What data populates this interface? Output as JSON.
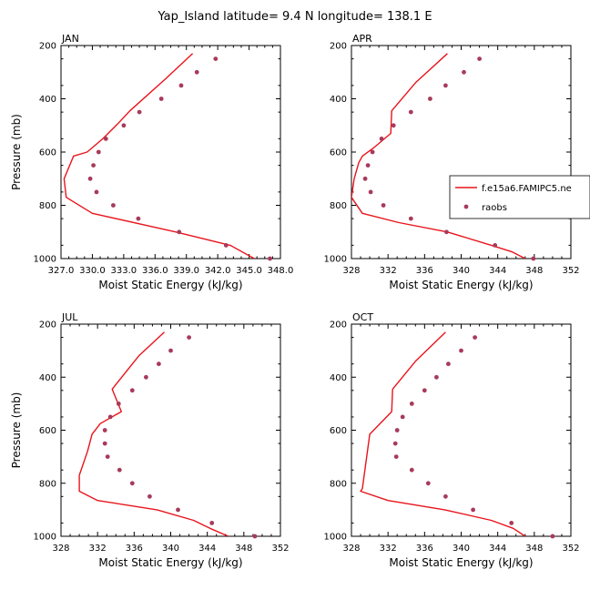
{
  "title": "Yap_Island  latitude= 9.4 N longitude= 138.1 E",
  "colors": {
    "model": "#e8141c",
    "raobs": "#a83a5a",
    "axis": "#000000"
  },
  "legend": {
    "model_label": "f.e15a6.FAMIPC5.ne",
    "raobs_label": "raobs",
    "placement": "right of APR panel"
  },
  "chart_data": [
    {
      "type": "line",
      "label": "JAN",
      "xlabel": "Moist Static Energy (kJ/kg)",
      "ylabel": "Pressure (mb)",
      "xlim": [
        327,
        348
      ],
      "ylim": [
        1000,
        200
      ],
      "y_reversed": true,
      "xticks": [
        327,
        330,
        333,
        336,
        339,
        342,
        345,
        348
      ],
      "xtick_labels": [
        "327.0",
        "330.0",
        "333.0",
        "336.0",
        "339.0",
        "342.0",
        "345.0",
        "348.0"
      ],
      "yticks": [
        200,
        400,
        600,
        800,
        1000
      ],
      "series": [
        {
          "name": "f.e15a6.FAMIPC5.ne",
          "kind": "line",
          "points": [
            [
              339.6,
              230
            ],
            [
              337.0,
              325
            ],
            [
              333.6,
              445
            ],
            [
              332.4,
              495
            ],
            [
              331.0,
              550
            ],
            [
              329.5,
              600
            ],
            [
              328.2,
              615
            ],
            [
              327.3,
              700
            ],
            [
              327.5,
              770
            ],
            [
              330.0,
              830
            ],
            [
              338.0,
              900
            ],
            [
              343.2,
              950
            ],
            [
              345.5,
              1000
            ]
          ]
        },
        {
          "name": "raobs",
          "kind": "scatter",
          "points": [
            [
              341.8,
              250
            ],
            [
              340.0,
              300
            ],
            [
              338.5,
              350
            ],
            [
              336.6,
              400
            ],
            [
              334.5,
              450
            ],
            [
              333.0,
              500
            ],
            [
              331.3,
              550
            ],
            [
              330.6,
              600
            ],
            [
              330.1,
              650
            ],
            [
              329.8,
              700
            ],
            [
              330.4,
              750
            ],
            [
              332.0,
              800
            ],
            [
              334.4,
              850
            ],
            [
              338.3,
              900
            ],
            [
              342.8,
              950
            ],
            [
              347.0,
              1000
            ]
          ]
        }
      ]
    },
    {
      "type": "line",
      "label": "APR",
      "xlabel": "Moist Static Energy (kJ/kg)",
      "ylabel": "",
      "xlim": [
        328,
        352
      ],
      "ylim": [
        1000,
        200
      ],
      "y_reversed": true,
      "xticks": [
        328,
        332,
        336,
        340,
        344,
        348,
        352
      ],
      "xtick_labels": [
        "328",
        "332",
        "336",
        "340",
        "344",
        "348",
        "352"
      ],
      "yticks": [
        200,
        400,
        600,
        800,
        1000
      ],
      "series": [
        {
          "name": "f.e15a6.FAMIPC5.ne",
          "kind": "line",
          "points": [
            [
              338.5,
              230
            ],
            [
              335.0,
              340
            ],
            [
              332.4,
              445
            ],
            [
              332.3,
              530
            ],
            [
              330.4,
              585
            ],
            [
              329.2,
              615
            ],
            [
              328.8,
              640
            ],
            [
              328.3,
              700
            ],
            [
              328.0,
              770
            ],
            [
              329.2,
              830
            ],
            [
              333.2,
              865
            ],
            [
              338.5,
              900
            ],
            [
              343.3,
              950
            ],
            [
              345.6,
              975
            ],
            [
              347.0,
              1000
            ]
          ]
        },
        {
          "name": "raobs",
          "kind": "scatter",
          "points": [
            [
              342.0,
              250
            ],
            [
              340.3,
              300
            ],
            [
              338.3,
              350
            ],
            [
              336.6,
              400
            ],
            [
              334.5,
              450
            ],
            [
              332.6,
              500
            ],
            [
              331.3,
              550
            ],
            [
              330.3,
              600
            ],
            [
              329.8,
              650
            ],
            [
              329.5,
              700
            ],
            [
              330.1,
              750
            ],
            [
              331.5,
              800
            ],
            [
              334.5,
              850
            ],
            [
              338.4,
              900
            ],
            [
              343.7,
              950
            ],
            [
              347.9,
              1000
            ]
          ]
        }
      ]
    },
    {
      "type": "line",
      "label": "JUL",
      "xlabel": "Moist Static Energy (kJ/kg)",
      "ylabel": "Pressure (mb)",
      "xlim": [
        328,
        352
      ],
      "ylim": [
        1000,
        200
      ],
      "y_reversed": true,
      "xticks": [
        328,
        332,
        336,
        340,
        344,
        348,
        352
      ],
      "xtick_labels": [
        "328",
        "332",
        "336",
        "340",
        "344",
        "348",
        "352"
      ],
      "yticks": [
        200,
        400,
        600,
        800,
        1000
      ],
      "series": [
        {
          "name": "f.e15a6.FAMIPC5.ne",
          "kind": "line",
          "points": [
            [
              339.3,
              230
            ],
            [
              336.5,
              320
            ],
            [
              333.6,
              445
            ],
            [
              334.6,
              530
            ],
            [
              332.3,
              575
            ],
            [
              331.4,
              615
            ],
            [
              330.9,
              680
            ],
            [
              330.0,
              770
            ],
            [
              330.0,
              830
            ],
            [
              332.0,
              865
            ],
            [
              338.5,
              900
            ],
            [
              342.5,
              940
            ],
            [
              344.3,
              970
            ],
            [
              346.3,
              1000
            ]
          ]
        },
        {
          "name": "raobs",
          "kind": "scatter",
          "points": [
            [
              342.0,
              250
            ],
            [
              340.0,
              300
            ],
            [
              338.7,
              350
            ],
            [
              337.3,
              400
            ],
            [
              335.8,
              450
            ],
            [
              334.3,
              500
            ],
            [
              333.4,
              550
            ],
            [
              332.8,
              600
            ],
            [
              332.8,
              650
            ],
            [
              333.1,
              700
            ],
            [
              334.4,
              750
            ],
            [
              335.8,
              800
            ],
            [
              337.7,
              850
            ],
            [
              340.8,
              900
            ],
            [
              344.5,
              950
            ],
            [
              349.2,
              1000
            ]
          ]
        }
      ]
    },
    {
      "type": "line",
      "label": "OCT",
      "xlabel": "Moist Static Energy (kJ/kg)",
      "ylabel": "",
      "xlim": [
        328,
        352
      ],
      "ylim": [
        1000,
        200
      ],
      "y_reversed": true,
      "xticks": [
        328,
        332,
        336,
        340,
        344,
        348,
        352
      ],
      "xtick_labels": [
        "328",
        "332",
        "336",
        "340",
        "344",
        "348",
        "352"
      ],
      "yticks": [
        200,
        400,
        600,
        800,
        1000
      ],
      "series": [
        {
          "name": "f.e15a6.FAMIPC5.ne",
          "kind": "line",
          "points": [
            [
              338.3,
              230
            ],
            [
              335.0,
              340
            ],
            [
              332.5,
              445
            ],
            [
              332.4,
              530
            ],
            [
              330.0,
              615
            ],
            [
              329.2,
              820
            ],
            [
              329.0,
              830
            ],
            [
              332.0,
              865
            ],
            [
              338.2,
              900
            ],
            [
              343.3,
              940
            ],
            [
              345.7,
              970
            ],
            [
              347.0,
              1000
            ]
          ]
        },
        {
          "name": "raobs",
          "kind": "scatter",
          "points": [
            [
              341.5,
              250
            ],
            [
              340.0,
              300
            ],
            [
              338.6,
              350
            ],
            [
              337.3,
              400
            ],
            [
              336.0,
              450
            ],
            [
              334.6,
              500
            ],
            [
              333.6,
              550
            ],
            [
              333.0,
              600
            ],
            [
              332.8,
              650
            ],
            [
              332.9,
              700
            ],
            [
              334.6,
              750
            ],
            [
              336.4,
              800
            ],
            [
              338.3,
              850
            ],
            [
              341.3,
              900
            ],
            [
              345.5,
              950
            ],
            [
              350.0,
              1000
            ]
          ]
        }
      ]
    }
  ]
}
